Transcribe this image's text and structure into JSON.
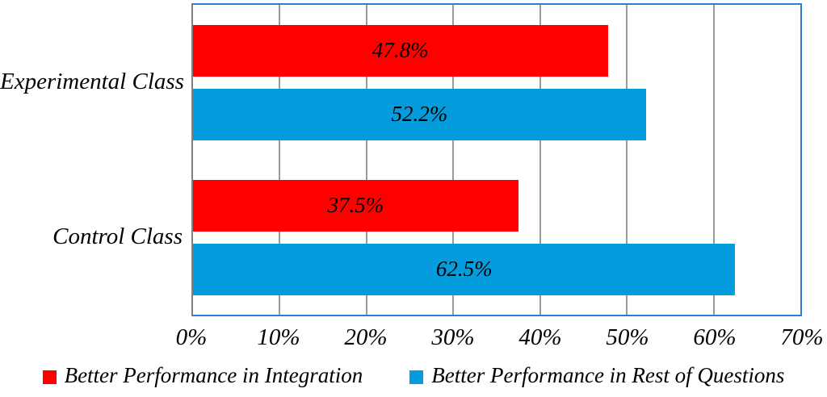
{
  "chart_data": {
    "type": "bar",
    "orientation": "horizontal",
    "title": "",
    "categories": [
      "Experimental Class",
      "Control Class"
    ],
    "series": [
      {
        "name": "Better Performance in Integration",
        "color": "#FF0000",
        "values": [
          47.8,
          37.5
        ],
        "data_labels": [
          "47.8%",
          "37.5%"
        ]
      },
      {
        "name": "Better Performance in Rest of Questions",
        "color": "#049CDC",
        "values": [
          52.2,
          62.5
        ],
        "data_labels": [
          "52.2%",
          "62.5%"
        ]
      }
    ],
    "xlim": [
      0,
      70
    ],
    "x_tick_values": [
      0,
      10,
      20,
      30,
      40,
      50,
      60,
      70
    ],
    "x_tick_labels": [
      "0%",
      "10%",
      "20%",
      "30%",
      "40%",
      "50%",
      "60%",
      "70%"
    ],
    "grid": true,
    "legend_position": "bottom"
  },
  "colors": {
    "plot_border": "#2E7FD0",
    "axis_line": "#7F7F7F",
    "gridline": "#9A9A9A",
    "data_label_text": "#000000",
    "background": "#FFFFFF"
  }
}
